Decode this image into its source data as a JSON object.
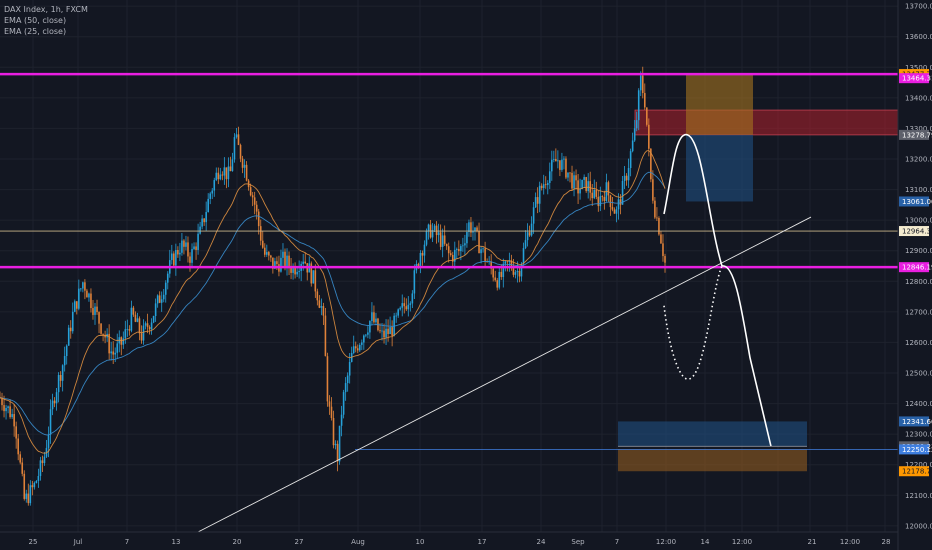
{
  "legend": {
    "symbol": "DAX Index, 1h, FXCM",
    "ema50": "EMA (50, close)",
    "ema25": "EMA (25, close)"
  },
  "colors": {
    "background": "#131722",
    "bull": "#26a1d9",
    "bear": "#e0823a",
    "ema50": "#3a8fd0",
    "ema25": "#e09040",
    "magenta": "#e91ee1",
    "trendline": "#e6e6e6",
    "blue_line": "#3f7fe0",
    "projection": "#ffffff"
  },
  "chart_data": {
    "type": "candlestick",
    "title": "DAX Index, 1h, FXCM",
    "ylim": [
      11980,
      13720
    ],
    "y_ticks": [
      12000,
      12100,
      12200,
      12300,
      12400,
      12500,
      12600,
      12700,
      12800,
      12900,
      13000,
      13100,
      13200,
      13300,
      13400,
      13500,
      13600,
      13700
    ],
    "x_ticks": [
      "25",
      "Jul",
      "7",
      "13",
      "20",
      "27",
      "Aug",
      "10",
      "17",
      "24",
      "Sep",
      "7",
      "12:00",
      "14",
      "12:00",
      "21",
      "12:00",
      "28"
    ],
    "price_path": [
      [
        0,
        12420
      ],
      [
        0.03,
        12350
      ],
      [
        0.05,
        12080
      ],
      [
        0.07,
        12130
      ],
      [
        0.09,
        12220
      ],
      [
        0.11,
        12420
      ],
      [
        0.13,
        12540
      ],
      [
        0.15,
        12700
      ],
      [
        0.17,
        12800
      ],
      [
        0.19,
        12720
      ],
      [
        0.21,
        12640
      ],
      [
        0.23,
        12560
      ],
      [
        0.25,
        12600
      ],
      [
        0.27,
        12690
      ],
      [
        0.29,
        12620
      ],
      [
        0.31,
        12680
      ],
      [
        0.33,
        12760
      ],
      [
        0.35,
        12860
      ],
      [
        0.37,
        12920
      ],
      [
        0.39,
        12880
      ],
      [
        0.41,
        12960
      ],
      [
        0.43,
        13090
      ],
      [
        0.45,
        13180
      ],
      [
        0.47,
        13140
      ],
      [
        0.48,
        13270
      ],
      [
        0.5,
        13180
      ],
      [
        0.52,
        13060
      ],
      [
        0.54,
        12890
      ],
      [
        0.56,
        12850
      ],
      [
        0.58,
        12870
      ],
      [
        0.6,
        12840
      ],
      [
        0.62,
        12880
      ],
      [
        0.64,
        12810
      ],
      [
        0.66,
        12700
      ],
      [
        0.67,
        12420
      ],
      [
        0.68,
        12300
      ],
      [
        0.69,
        12220
      ],
      [
        0.7,
        12400
      ],
      [
        0.72,
        12560
      ],
      [
        0.74,
        12620
      ],
      [
        0.76,
        12680
      ],
      [
        0.78,
        12620
      ],
      [
        0.8,
        12640
      ],
      [
        0.82,
        12700
      ],
      [
        0.84,
        12760
      ],
      [
        0.86,
        12900
      ],
      [
        0.88,
        12970
      ],
      [
        0.9,
        12940
      ],
      [
        0.92,
        12880
      ],
      [
        0.94,
        12900
      ],
      [
        0.96,
        12990
      ],
      [
        0.98,
        12920
      ],
      [
        1.0,
        12850
      ],
      [
        1.02,
        12800
      ],
      [
        1.04,
        12860
      ],
      [
        1.06,
        12830
      ],
      [
        1.08,
        12960
      ],
      [
        1.1,
        13080
      ],
      [
        1.12,
        13150
      ],
      [
        1.14,
        13200
      ],
      [
        1.16,
        13160
      ],
      [
        1.18,
        13100
      ],
      [
        1.2,
        13120
      ],
      [
        1.22,
        13060
      ],
      [
        1.24,
        13100
      ],
      [
        1.26,
        13020
      ],
      [
        1.28,
        13140
      ],
      [
        1.3,
        13300
      ],
      [
        1.31,
        13460
      ],
      [
        1.32,
        13380
      ],
      [
        1.33,
        13140
      ],
      [
        1.34,
        13030
      ],
      [
        1.35,
        12960
      ],
      [
        1.36,
        12860
      ]
    ],
    "horizontal_levels": [
      {
        "name": "magenta-top",
        "value": 13477.72,
        "color": "#e91ee1",
        "label": "13477.72"
      },
      {
        "name": "magenta-mid",
        "value": 12846.19,
        "color": "#e91ee1",
        "label": "12846.19"
      },
      {
        "name": "thin-current",
        "value": 12964.34,
        "color": "#c8b48a",
        "label": "12964.34"
      },
      {
        "name": "blue-support",
        "value": 12250.12,
        "color": "#3f7fe0",
        "label": "12250.12"
      }
    ],
    "price_tags": [
      {
        "value": 13477.72,
        "label": "13477.72",
        "bg": "#ff9800",
        "fg": "#131722"
      },
      {
        "value": 13464.31,
        "label": "13464.31",
        "bg": "#e91ee1",
        "fg": "#ffffff"
      },
      {
        "value": 13278.79,
        "label": "13278.79",
        "bg": "#5d606b",
        "fg": "#ffffff"
      },
      {
        "value": 13061.06,
        "label": "13061.06",
        "bg": "#2962a8",
        "fg": "#ffffff"
      },
      {
        "value": 12964.34,
        "label": "12964.34",
        "bg": "#f5ecd0",
        "fg": "#131722"
      },
      {
        "value": 12846.19,
        "label": "12846.19",
        "bg": "#e91ee1",
        "fg": "#ffffff"
      },
      {
        "value": 12341.66,
        "label": "12341.66",
        "bg": "#2962a8",
        "fg": "#ffffff"
      },
      {
        "value": 12260.21,
        "label": "12260.21",
        "bg": "#5d606b",
        "fg": "#ffffff"
      },
      {
        "value": 12250.12,
        "label": "12250.12",
        "bg": "#3f7fe0",
        "fg": "#ffffff"
      },
      {
        "value": 12178.76,
        "label": "12178.76",
        "bg": "#ff9800",
        "fg": "#131722"
      }
    ],
    "zones": [
      {
        "name": "resistance-zone",
        "y_top": 13360,
        "y_bottom": 13278.79,
        "color": "#b0202c"
      },
      {
        "name": "upper-orange-box",
        "y_top": 13477.72,
        "y_bottom": 13278.79,
        "color": "#a57320"
      },
      {
        "name": "upper-blue-box",
        "y_top": 13278.79,
        "y_bottom": 13061.06,
        "color": "#1f4f80"
      },
      {
        "name": "lower-blue-box",
        "y_top": 12341.66,
        "y_bottom": 12260.21,
        "color": "#1f4f80"
      },
      {
        "name": "lower-orange-box",
        "y_top": 12250.12,
        "y_bottom": 12178.76,
        "color": "#8f5a20"
      }
    ]
  }
}
